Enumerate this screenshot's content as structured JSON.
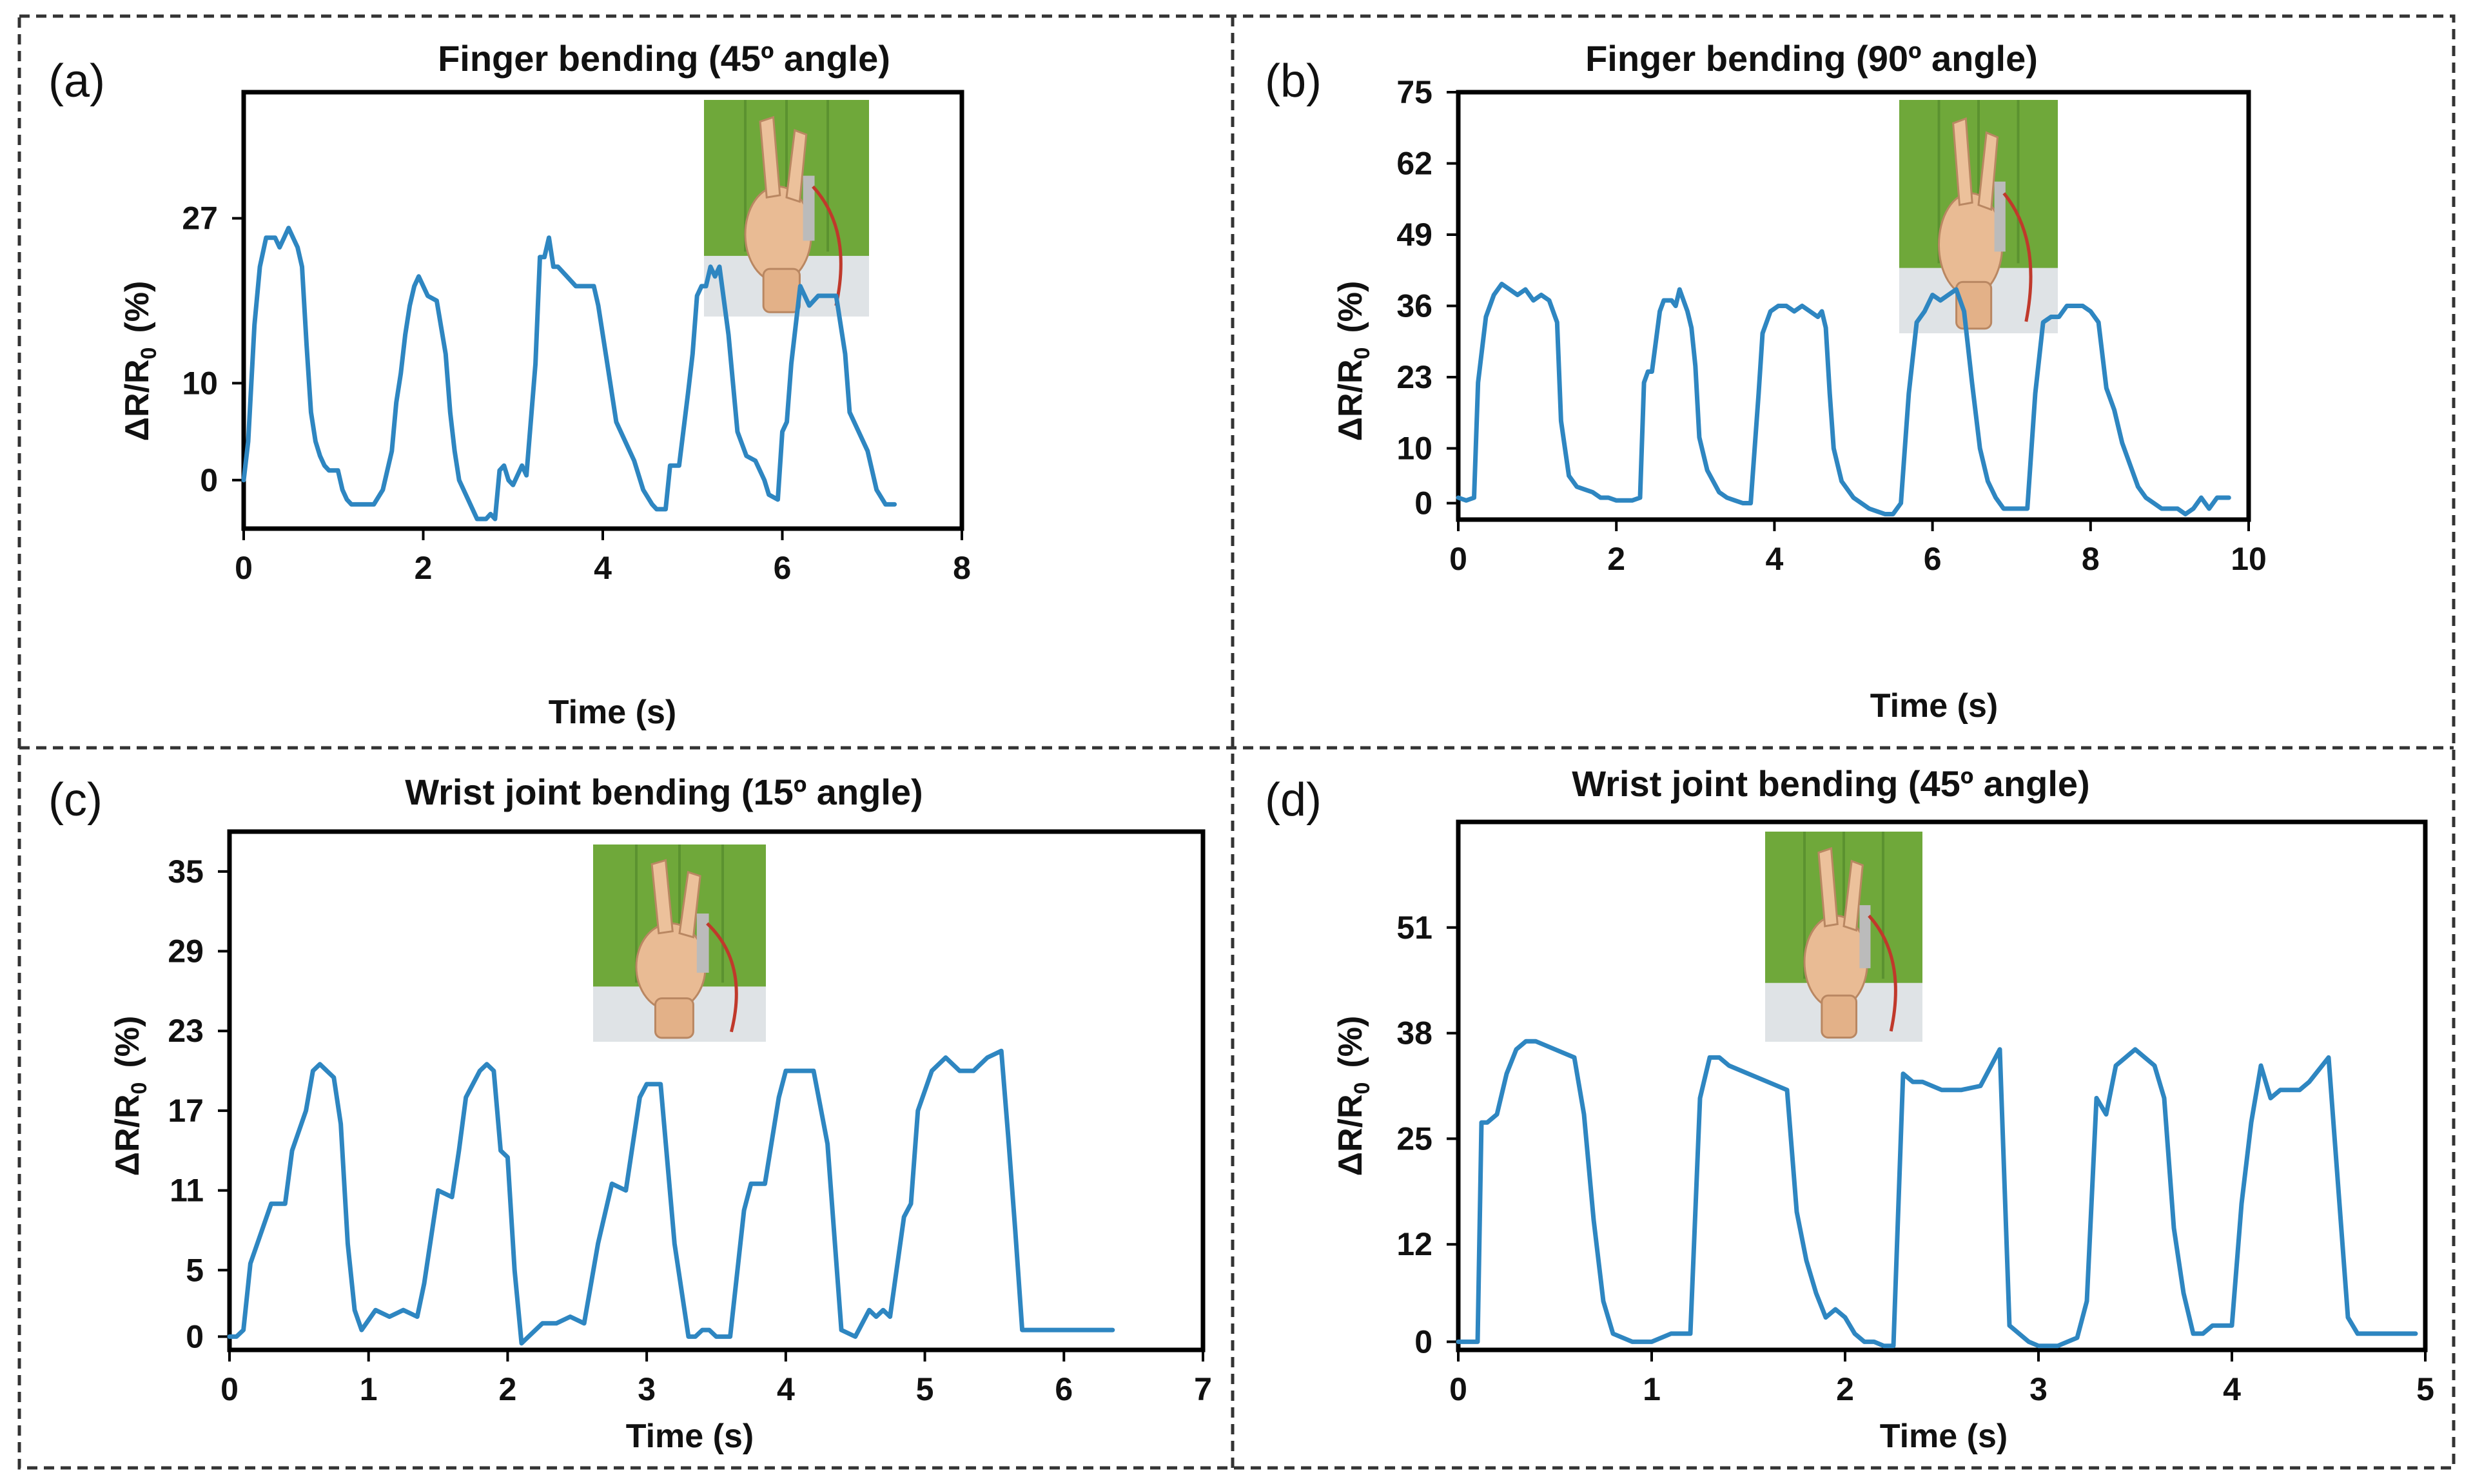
{
  "figure": {
    "accent_color": "#2e86c1",
    "inset_icon": "wooden-hand-photo"
  },
  "chart_data": [
    {
      "id": "a",
      "panel_label": "(a)",
      "type": "line",
      "title": "Finger bending (45º angle)",
      "xlabel": "Time (s)",
      "ylabel_main": "ΔR/R",
      "ylabel_sub": "0",
      "ylabel_unit": "(%)",
      "xlim": [
        0,
        8
      ],
      "ylim": [
        -5,
        40
      ],
      "xticks": [
        0,
        2,
        4,
        6,
        8
      ],
      "yticks": [
        0,
        10,
        27
      ],
      "grid": false,
      "series": [
        {
          "name": "ΔR/R0",
          "x": [
            0,
            0.05,
            0.12,
            0.18,
            0.25,
            0.3,
            0.35,
            0.4,
            0.45,
            0.5,
            0.55,
            0.6,
            0.65,
            0.7,
            0.75,
            0.8,
            0.85,
            0.9,
            0.95,
            1.05,
            1.1,
            1.15,
            1.2,
            1.25,
            1.35,
            1.45,
            1.55,
            1.65,
            1.7,
            1.75,
            1.8,
            1.85,
            1.9,
            1.95,
            2.0,
            2.05,
            2.15,
            2.25,
            2.3,
            2.35,
            2.4,
            2.5,
            2.6,
            2.7,
            2.75,
            2.8,
            2.85,
            2.9,
            2.95,
            3.0,
            3.1,
            3.15,
            3.25,
            3.3,
            3.35,
            3.4,
            3.45,
            3.5,
            3.6,
            3.7,
            3.8,
            3.9,
            3.95,
            4.05,
            4.15,
            4.25,
            4.35,
            4.45,
            4.55,
            4.6,
            4.7,
            4.75,
            4.85,
            4.95,
            5.0,
            5.05,
            5.1,
            5.15,
            5.2,
            5.25,
            5.3,
            5.4,
            5.5,
            5.6,
            5.7,
            5.8,
            5.85,
            5.95,
            6.0,
            6.05,
            6.1,
            6.2,
            6.3,
            6.4,
            6.5,
            6.6,
            6.7,
            6.75,
            6.85,
            6.95,
            7.05,
            7.15,
            7.25
          ],
          "y": [
            0,
            4,
            16,
            22,
            25,
            25,
            25,
            24,
            25,
            26,
            25,
            24,
            22,
            14,
            7,
            4,
            2.5,
            1.5,
            1,
            1,
            -1,
            -2,
            -2.5,
            -2.5,
            -2.5,
            -2.5,
            -1,
            3,
            8,
            11,
            15,
            18,
            20,
            21,
            20,
            19,
            18.5,
            13,
            7,
            3,
            0,
            -2,
            -4,
            -4,
            -3.5,
            -4,
            1,
            1.5,
            0,
            -0.5,
            1.5,
            0.5,
            12,
            23,
            23,
            25,
            22,
            22,
            21,
            20,
            20,
            20,
            18,
            12,
            6,
            4,
            2,
            -1,
            -2.5,
            -3,
            -3,
            1.5,
            1.5,
            9,
            13,
            19,
            20,
            20,
            22,
            21,
            22,
            15,
            5,
            2.5,
            2,
            0,
            -1.5,
            -2,
            5,
            6,
            12,
            20,
            18,
            19,
            19,
            19,
            13,
            7,
            5,
            3,
            -1,
            -2.5,
            -2.5
          ]
        }
      ],
      "inset_label": "45° finger bend photo"
    },
    {
      "id": "b",
      "panel_label": "(b)",
      "type": "line",
      "title": "Finger bending (90º angle)",
      "xlabel": "Time (s)",
      "ylabel_main": "ΔR/R",
      "ylabel_sub": "0",
      "ylabel_unit": "(%)",
      "xlim": [
        0,
        10
      ],
      "ylim": [
        -3,
        75
      ],
      "xticks": [
        0,
        2,
        4,
        6,
        8,
        10
      ],
      "yticks": [
        0,
        10,
        23,
        36,
        49,
        62,
        75
      ],
      "grid": false,
      "series": [
        {
          "name": "ΔR/R0",
          "x": [
            0,
            0.1,
            0.2,
            0.25,
            0.35,
            0.45,
            0.55,
            0.65,
            0.75,
            0.85,
            0.95,
            1.05,
            1.15,
            1.25,
            1.3,
            1.4,
            1.5,
            1.6,
            1.7,
            1.8,
            1.9,
            2.0,
            2.1,
            2.2,
            2.3,
            2.35,
            2.4,
            2.45,
            2.55,
            2.6,
            2.7,
            2.75,
            2.8,
            2.85,
            2.9,
            2.95,
            3.0,
            3.05,
            3.15,
            3.3,
            3.4,
            3.5,
            3.6,
            3.7,
            3.8,
            3.85,
            3.95,
            4.05,
            4.15,
            4.25,
            4.35,
            4.45,
            4.55,
            4.6,
            4.65,
            4.7,
            4.75,
            4.85,
            5.0,
            5.2,
            5.3,
            5.4,
            5.5,
            5.6,
            5.7,
            5.8,
            5.9,
            6.0,
            6.1,
            6.2,
            6.3,
            6.4,
            6.5,
            6.6,
            6.7,
            6.8,
            6.9,
            7.0,
            7.1,
            7.2,
            7.3,
            7.4,
            7.5,
            7.6,
            7.7,
            7.8,
            7.9,
            8.0,
            8.1,
            8.2,
            8.3,
            8.4,
            8.5,
            8.6,
            8.7,
            8.8,
            8.9,
            9.0,
            9.1,
            9.2,
            9.3,
            9.4,
            9.5,
            9.6,
            9.65,
            9.75
          ],
          "y": [
            1,
            0.5,
            1,
            22,
            34,
            38,
            40,
            39,
            38,
            39,
            37,
            38,
            37,
            33,
            15,
            5,
            3,
            2.5,
            2,
            1,
            1,
            0.5,
            0.5,
            0.5,
            1,
            22,
            24,
            24,
            35,
            37,
            37,
            36,
            39,
            37,
            35,
            32,
            25,
            12,
            6,
            2,
            1,
            0.5,
            0,
            0,
            20,
            31,
            35,
            36,
            36,
            35,
            36,
            35,
            34,
            35,
            32,
            20,
            10,
            4,
            1,
            -1,
            -1.5,
            -2,
            -2,
            0,
            20,
            33,
            35,
            38,
            37,
            38,
            39,
            35,
            22,
            10,
            4,
            1,
            -1,
            -1,
            -1,
            -1,
            20,
            33,
            34,
            34,
            36,
            36,
            36,
            35,
            33,
            21,
            17,
            11,
            7,
            3,
            1,
            0,
            -1,
            -1,
            -1,
            -2,
            -1,
            1,
            -1,
            1,
            1,
            1
          ]
        }
      ],
      "inset_label": "90° finger bend photo"
    },
    {
      "id": "c",
      "panel_label": "(c)",
      "type": "line",
      "title": "Wrist joint bending (15º angle)",
      "xlabel": "Time (s)",
      "ylabel_main": "ΔR/R",
      "ylabel_sub": "0",
      "ylabel_unit": "(%)",
      "xlim": [
        0,
        7
      ],
      "ylim": [
        -1,
        38
      ],
      "xticks": [
        0,
        1,
        2,
        3,
        4,
        5,
        6,
        7
      ],
      "yticks": [
        0,
        5,
        11,
        17,
        23,
        29,
        35
      ],
      "grid": false,
      "series": [
        {
          "name": "ΔR/R0",
          "x": [
            0,
            0.05,
            0.1,
            0.15,
            0.3,
            0.4,
            0.45,
            0.55,
            0.6,
            0.65,
            0.7,
            0.75,
            0.8,
            0.85,
            0.9,
            0.95,
            1.05,
            1.15,
            1.25,
            1.35,
            1.4,
            1.5,
            1.6,
            1.65,
            1.7,
            1.8,
            1.85,
            1.9,
            1.95,
            2.0,
            2.05,
            2.1,
            2.15,
            2.25,
            2.35,
            2.45,
            2.55,
            2.65,
            2.75,
            2.85,
            2.95,
            3.0,
            3.1,
            3.15,
            3.2,
            3.3,
            3.35,
            3.4,
            3.45,
            3.5,
            3.6,
            3.7,
            3.75,
            3.85,
            3.95,
            4.0,
            4.1,
            4.2,
            4.3,
            4.4,
            4.5,
            4.6,
            4.65,
            4.7,
            4.75,
            4.85,
            4.9,
            4.95,
            5.05,
            5.15,
            5.25,
            5.35,
            5.45,
            5.55,
            5.6,
            5.65,
            5.7,
            5.8,
            5.85,
            5.95,
            6.05,
            6.15,
            6.25,
            6.35
          ],
          "y": [
            0,
            0,
            0.5,
            5.5,
            10,
            10,
            14,
            17,
            20,
            20.5,
            20,
            19.5,
            16,
            7,
            2,
            0.5,
            2,
            1.5,
            2,
            1.5,
            4,
            11,
            10.5,
            14,
            18,
            20,
            20.5,
            20,
            14,
            13.5,
            5,
            -0.5,
            0,
            1,
            1,
            1.5,
            1,
            7,
            11.5,
            11,
            18,
            19,
            19,
            13,
            7,
            0,
            0,
            0.5,
            0.5,
            0,
            0,
            9.5,
            11.5,
            11.5,
            18,
            20,
            20,
            20,
            14.5,
            0.5,
            0,
            2,
            1.5,
            2,
            1.5,
            9,
            10,
            17,
            20,
            21,
            20,
            20,
            21,
            21.5,
            15,
            8,
            0.5,
            0.5,
            0.5,
            0.5,
            0.5,
            0.5,
            0.5,
            0.5
          ],
          "x_note": "shape read from plot"
        }
      ],
      "inset_label": "15° wrist bend photo"
    },
    {
      "id": "d",
      "panel_label": "(d)",
      "type": "line",
      "title": "Wrist joint bending (45º angle)",
      "xlabel": "Time (s)",
      "ylabel_main": "ΔR/R",
      "ylabel_sub": "0",
      "ylabel_unit": "(%)",
      "xlim": [
        0,
        5
      ],
      "ylim": [
        -1,
        64
      ],
      "xticks": [
        0,
        1,
        2,
        3,
        4,
        5
      ],
      "yticks": [
        0,
        12,
        25,
        38,
        51
      ],
      "grid": false,
      "series": [
        {
          "name": "ΔR/R0",
          "x": [
            0,
            0.05,
            0.1,
            0.12,
            0.15,
            0.2,
            0.25,
            0.3,
            0.35,
            0.4,
            0.5,
            0.6,
            0.65,
            0.7,
            0.75,
            0.8,
            0.9,
            1.0,
            1.1,
            1.2,
            1.25,
            1.3,
            1.35,
            1.4,
            1.5,
            1.6,
            1.7,
            1.75,
            1.8,
            1.85,
            1.9,
            1.95,
            2.0,
            2.05,
            2.1,
            2.15,
            2.2,
            2.25,
            2.3,
            2.35,
            2.4,
            2.5,
            2.6,
            2.7,
            2.8,
            2.85,
            2.9,
            2.95,
            3.0,
            3.05,
            3.1,
            3.15,
            3.2,
            3.25,
            3.3,
            3.35,
            3.4,
            3.45,
            3.5,
            3.55,
            3.6,
            3.65,
            3.7,
            3.75,
            3.8,
            3.85,
            3.9,
            3.95,
            4.0,
            4.05,
            4.1,
            4.15,
            4.2,
            4.25,
            4.3,
            4.35,
            4.4,
            4.5,
            4.6,
            4.65,
            4.7,
            4.75,
            4.8,
            4.85,
            4.9,
            4.95
          ],
          "y": [
            0,
            0,
            0,
            27,
            27,
            28,
            33,
            36,
            37,
            37,
            36,
            35,
            28,
            15,
            5,
            1,
            0,
            0,
            1,
            1,
            30,
            35,
            35,
            34,
            33,
            32,
            31,
            16,
            10,
            6,
            3,
            4,
            3,
            1,
            0,
            0,
            -0.5,
            -0.5,
            33,
            32,
            32,
            31,
            31,
            31.5,
            36,
            2,
            1,
            0,
            -0.5,
            -0.5,
            -0.5,
            0,
            0.5,
            5,
            30,
            28,
            34,
            35,
            36,
            35,
            34,
            30,
            14,
            6,
            1,
            1,
            2,
            2,
            2,
            17,
            27,
            34,
            30,
            31,
            31,
            31,
            32,
            35,
            3,
            1,
            1,
            1,
            1,
            1,
            1,
            1
          ],
          "x_note": "shape read from plot"
        }
      ],
      "inset_label": "45° wrist bend photo"
    }
  ]
}
